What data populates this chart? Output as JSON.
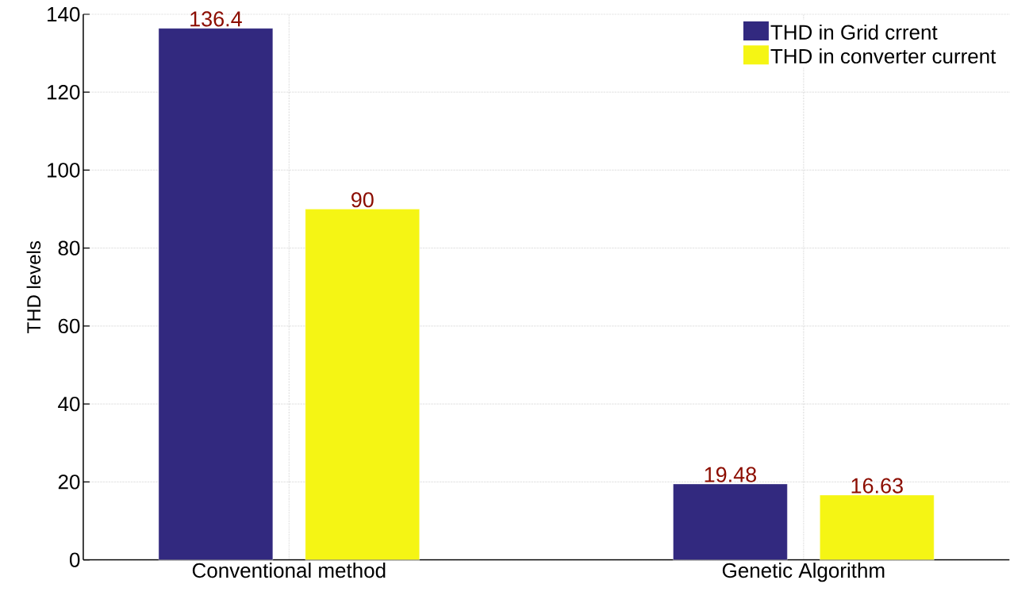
{
  "chart_data": {
    "type": "bar",
    "ylabel": "THD levels",
    "categories": [
      "Conventional method",
      "Genetic Algorithm"
    ],
    "series": [
      {
        "name": "THD in Grid crrent",
        "color": "#32297f",
        "values": [
          136.4,
          19.48
        ]
      },
      {
        "name": "THD in converter current",
        "color": "#f5f514",
        "values": [
          90,
          16.63
        ]
      }
    ],
    "ylim": [
      0,
      140
    ],
    "yticks": [
      0,
      20,
      40,
      60,
      80,
      100,
      120,
      140
    ],
    "grid": true,
    "legend": "top right",
    "data_labels": true
  }
}
